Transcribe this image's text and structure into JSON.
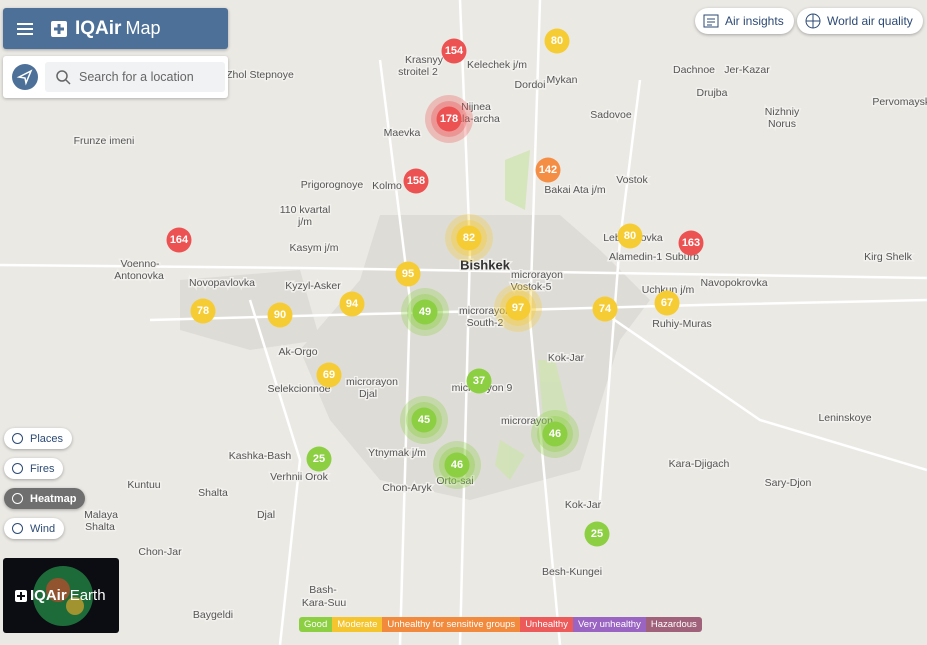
{
  "header": {
    "brand": "IQAir",
    "product": "Map"
  },
  "search": {
    "placeholder": "Search for a location"
  },
  "top_buttons": [
    "Air insights",
    "World air quality"
  ],
  "layers": [
    "Places",
    "Fires",
    "Heatmap",
    "Wind"
  ],
  "earth": {
    "brand": "IQAir",
    "product": "Earth"
  },
  "legend": [
    "Good",
    "Moderate",
    "Unhealthy for sensitive groups",
    "Unhealthy",
    "Very unhealthy",
    "Hazardous"
  ],
  "markers": [
    154,
    80,
    178,
    158,
    142,
    164,
    82,
    80,
    163,
    95,
    94,
    49,
    97,
    74,
    67,
    78,
    90,
    69,
    37,
    45,
    46,
    46,
    25,
    25
  ],
  "places": [
    "Zhol Stepnoye",
    "Krasnyy",
    "stroitel 2",
    "Kelechek j/m",
    "Mykan",
    "Dachnoe",
    "Jer-Kazar",
    "Dordoi",
    "Drujba",
    "Sadovoe",
    "Nizhniy",
    "Norus",
    "Pervomayskiy",
    "Nijnea",
    "ala-archa",
    "Maevka",
    "Frunze imeni",
    "Bakai Ata j/m",
    "Vostok",
    "Prigorognoye",
    "Kolmo",
    "110 kvartal",
    "j/m",
    "Kasym j/m",
    "Lebedinovka",
    "Alamedin-1 Suburb",
    "Kirg Shelk",
    "Voenno-",
    "Antonovka",
    "Novopavlovka",
    "Kyzyl-Asker",
    "Bishkek",
    "microrayon",
    "Vostok-5",
    "Navopokrovka",
    "Uchkun j/m",
    "microrayon",
    "South-2",
    "Ruhiy-Muras",
    "Ak-Orgo",
    "Kok-Jar",
    "microrayon",
    "Djal",
    "Selekcionnoe",
    "microrayon 9",
    "microrayon",
    "Leninskoye",
    "Kashka-Bash",
    "Ytnymak j/m",
    "Kara-Djigach",
    "Verhnii Orok",
    "Orto-sai",
    "Kuntuu",
    "Chon-Aryk",
    "Shalta",
    "Sary-Djon",
    "Kok-Jar",
    "Malaya",
    "Shalta",
    "Djal",
    "Chon-Jar",
    "Besh-Kungei",
    "Bash-",
    "Kara-Suu",
    "Baygeldi"
  ]
}
